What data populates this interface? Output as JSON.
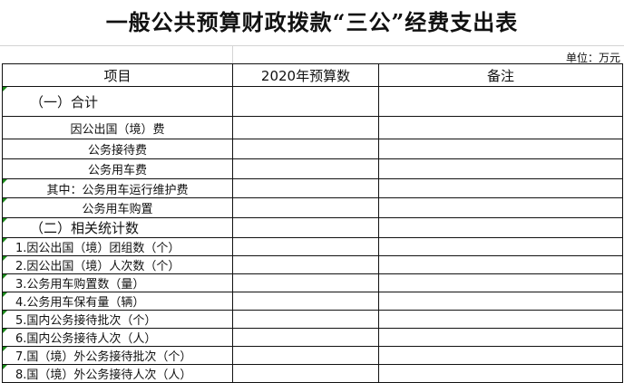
{
  "title": "一般公共预算财政拨款“三公”经费支出表",
  "unit": "单位：万元",
  "headers": [
    "项目",
    "2020年预算数",
    "备注"
  ],
  "rows": [
    {
      "label": "（一）合计",
      "budget": "",
      "note": ""
    },
    {
      "label": "因公出国（境）费",
      "budget": "",
      "note": ""
    },
    {
      "label": "公务接待费",
      "budget": "",
      "note": ""
    },
    {
      "label": "公务用车费",
      "budget": "",
      "note": ""
    },
    {
      "label": "其中：公务用车运行维护费",
      "budget": "",
      "note": ""
    },
    {
      "label": "公务用车购置",
      "budget": "",
      "note": ""
    },
    {
      "label": "（二）相关统计数",
      "budget": "",
      "note": ""
    },
    {
      "label": "1.因公出国（境）团组数（个）",
      "budget": "",
      "note": ""
    },
    {
      "label": "2.因公出国（境）人次数（个）",
      "budget": "",
      "note": ""
    },
    {
      "label": "3.公务用车购置数（量）",
      "budget": "",
      "note": ""
    },
    {
      "label": "4.公务用车保有量（辆）",
      "budget": "",
      "note": ""
    },
    {
      "label": "5.国内公务接待批次（个）",
      "budget": "",
      "note": ""
    },
    {
      "label": "6.国内公务接待人次（人）",
      "budget": "",
      "note": ""
    },
    {
      "label": "7.国（境）外公务接待批次（个）",
      "budget": "",
      "note": ""
    },
    {
      "label": "8.国（境）外公务接待人次（人）",
      "budget": "",
      "note": ""
    }
  ]
}
